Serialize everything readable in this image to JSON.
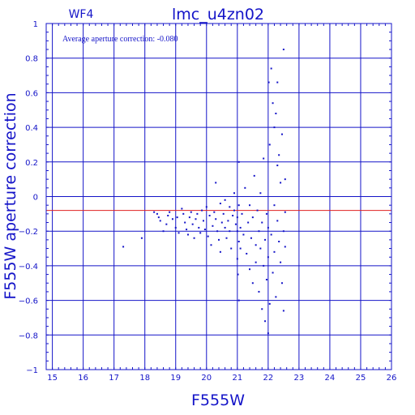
{
  "chart_data": {
    "type": "scatter",
    "title": "lmc_u4zn02",
    "panel_label": "WF4",
    "annotation": "Average aperture correction: -0.080",
    "xlabel": "F555W",
    "ylabel": "F555W aperture correction",
    "xlim": [
      14.8,
      26.0
    ],
    "ylim": [
      -1,
      1
    ],
    "x_ticks": [
      "15",
      "16",
      "17",
      "18",
      "19",
      "20",
      "21",
      "22",
      "23",
      "24",
      "25",
      "26"
    ],
    "y_ticks": [
      "1",
      "0.8",
      "0.6",
      "0.4",
      "0.2",
      "0",
      "−0.2",
      "−0.4",
      "−0.6",
      "−0.8",
      "−1"
    ],
    "grid": true,
    "reference_line": {
      "y": -0.08,
      "color": "#e02020"
    },
    "colors": {
      "axes": "#1414c8",
      "points": "#1414c8",
      "reference": "#e02020",
      "background": "#ffffff"
    },
    "points": [
      [
        17.3,
        -0.29
      ],
      [
        17.9,
        -0.24
      ],
      [
        18.3,
        -0.09
      ],
      [
        18.4,
        -0.1
      ],
      [
        18.45,
        -0.12
      ],
      [
        18.5,
        -0.14
      ],
      [
        18.6,
        -0.2
      ],
      [
        18.7,
        -0.16
      ],
      [
        18.75,
        -0.11
      ],
      [
        18.8,
        -0.09
      ],
      [
        18.9,
        -0.13
      ],
      [
        19.0,
        -0.18
      ],
      [
        19.05,
        -0.12
      ],
      [
        19.1,
        -0.21
      ],
      [
        19.2,
        -0.07
      ],
      [
        19.25,
        -0.1
      ],
      [
        19.3,
        -0.15
      ],
      [
        19.35,
        -0.19
      ],
      [
        19.4,
        -0.22
      ],
      [
        19.45,
        -0.12
      ],
      [
        19.5,
        -0.09
      ],
      [
        19.55,
        -0.16
      ],
      [
        19.6,
        -0.24
      ],
      [
        19.65,
        -0.13
      ],
      [
        19.7,
        -0.1
      ],
      [
        19.75,
        -0.18
      ],
      [
        19.8,
        -0.21
      ],
      [
        19.85,
        -0.08
      ],
      [
        19.9,
        -0.14
      ],
      [
        19.95,
        -0.19
      ],
      [
        20.0,
        -0.06
      ],
      [
        20.05,
        -0.23
      ],
      [
        20.1,
        -0.11
      ],
      [
        20.15,
        -0.28
      ],
      [
        20.2,
        -0.17
      ],
      [
        20.25,
        -0.09
      ],
      [
        20.3,
        -0.13
      ],
      [
        20.35,
        -0.2
      ],
      [
        20.4,
        -0.25
      ],
      [
        20.45,
        -0.32
      ],
      [
        20.5,
        -0.15
      ],
      [
        20.55,
        -0.1
      ],
      [
        20.6,
        -0.18
      ],
      [
        20.65,
        -0.24
      ],
      [
        20.7,
        -0.14
      ],
      [
        20.75,
        -0.2
      ],
      [
        20.8,
        -0.3
      ],
      [
        20.85,
        -0.11
      ],
      [
        20.9,
        -0.08
      ],
      [
        20.95,
        -0.16
      ],
      [
        20.3,
        0.08
      ],
      [
        20.6,
        -0.02
      ],
      [
        20.75,
        -0.06
      ],
      [
        20.9,
        0.02
      ],
      [
        20.45,
        -0.04
      ],
      [
        21.0,
        -0.36
      ],
      [
        21.0,
        -0.12
      ],
      [
        21.0,
        -0.2
      ],
      [
        21.02,
        -0.45
      ],
      [
        21.05,
        -0.6
      ],
      [
        21.05,
        -0.26
      ],
      [
        21.05,
        -0.05
      ],
      [
        21.05,
        0.2
      ],
      [
        21.1,
        -0.18
      ],
      [
        21.1,
        -0.3
      ],
      [
        21.15,
        -0.1
      ],
      [
        21.2,
        -0.22
      ],
      [
        21.25,
        0.05
      ],
      [
        21.3,
        -0.33
      ],
      [
        21.35,
        -0.15
      ],
      [
        21.4,
        -0.42
      ],
      [
        21.4,
        -0.05
      ],
      [
        21.45,
        -0.24
      ],
      [
        21.5,
        -0.5
      ],
      [
        21.5,
        -0.12
      ],
      [
        21.55,
        0.12
      ],
      [
        21.6,
        -0.28
      ],
      [
        21.6,
        -0.38
      ],
      [
        21.65,
        -0.08
      ],
      [
        21.7,
        -0.2
      ],
      [
        21.7,
        -0.55
      ],
      [
        21.75,
        -0.3
      ],
      [
        21.75,
        0.02
      ],
      [
        21.8,
        -0.15
      ],
      [
        21.8,
        -0.65
      ],
      [
        21.85,
        -0.4
      ],
      [
        21.85,
        0.22
      ],
      [
        21.9,
        -0.25
      ],
      [
        21.9,
        -0.72
      ],
      [
        21.95,
        -0.1
      ],
      [
        21.95,
        -0.48
      ],
      [
        22.0,
        -0.79
      ],
      [
        22.0,
        -0.35
      ],
      [
        22.0,
        -0.18
      ],
      [
        22.02,
        0.66
      ],
      [
        22.05,
        0.3
      ],
      [
        22.05,
        -0.62
      ],
      [
        22.1,
        0.74
      ],
      [
        22.1,
        -0.22
      ],
      [
        22.15,
        0.54
      ],
      [
        22.15,
        -0.44
      ],
      [
        22.2,
        0.4
      ],
      [
        22.2,
        -0.05
      ],
      [
        22.2,
        -0.32
      ],
      [
        22.25,
        0.48
      ],
      [
        22.25,
        -0.58
      ],
      [
        22.3,
        0.66
      ],
      [
        22.3,
        0.18
      ],
      [
        22.3,
        -0.14
      ],
      [
        22.35,
        0.24
      ],
      [
        22.35,
        -0.26
      ],
      [
        22.4,
        0.08
      ],
      [
        22.4,
        -0.38
      ],
      [
        22.45,
        -0.5
      ],
      [
        22.45,
        0.36
      ],
      [
        22.5,
        0.85
      ],
      [
        22.5,
        -0.2
      ],
      [
        22.5,
        -0.66
      ],
      [
        22.55,
        -0.09
      ],
      [
        22.55,
        -0.29
      ],
      [
        22.55,
        0.1
      ]
    ]
  }
}
